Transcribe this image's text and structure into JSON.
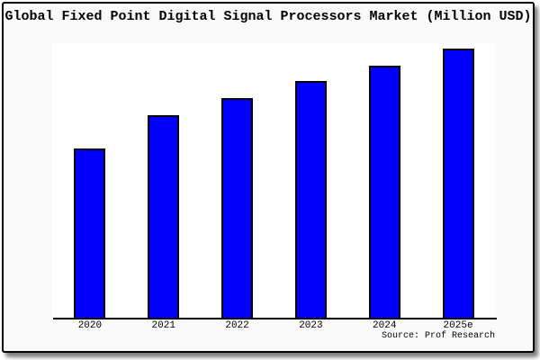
{
  "header": {
    "title": "Global Fixed Point Digital Signal Processors Market (Million USD)"
  },
  "footer": {
    "source": "Source: Prof Research"
  },
  "colors": {
    "bar_fill": "#0000fc",
    "bar_border": "#000000",
    "axis_line": "#000000",
    "frame_border": "#000000",
    "figure_background": "#fafafa",
    "plot_background": "#ffffff",
    "text": "#000000"
  },
  "chart_data": {
    "type": "bar",
    "title": "Global Fixed Point Digital Signal Processors Market (Million USD)",
    "categories": [
      "2020",
      "2021",
      "2022",
      "2023",
      "2024",
      "2025e"
    ],
    "values": [
      62.9,
      75.1,
      81.5,
      87.8,
      93.7,
      100
    ],
    "values_note": "No y-axis scale is shown in the figure; values are an index estimated from bar heights with 2025e = 100.",
    "xlabel": "",
    "ylabel": "",
    "ylim": [
      0,
      102
    ],
    "grid": false,
    "legend": "none",
    "bar_color": "#0000fc",
    "bar_border_color": "#000000",
    "source": "Source: Prof Research"
  }
}
